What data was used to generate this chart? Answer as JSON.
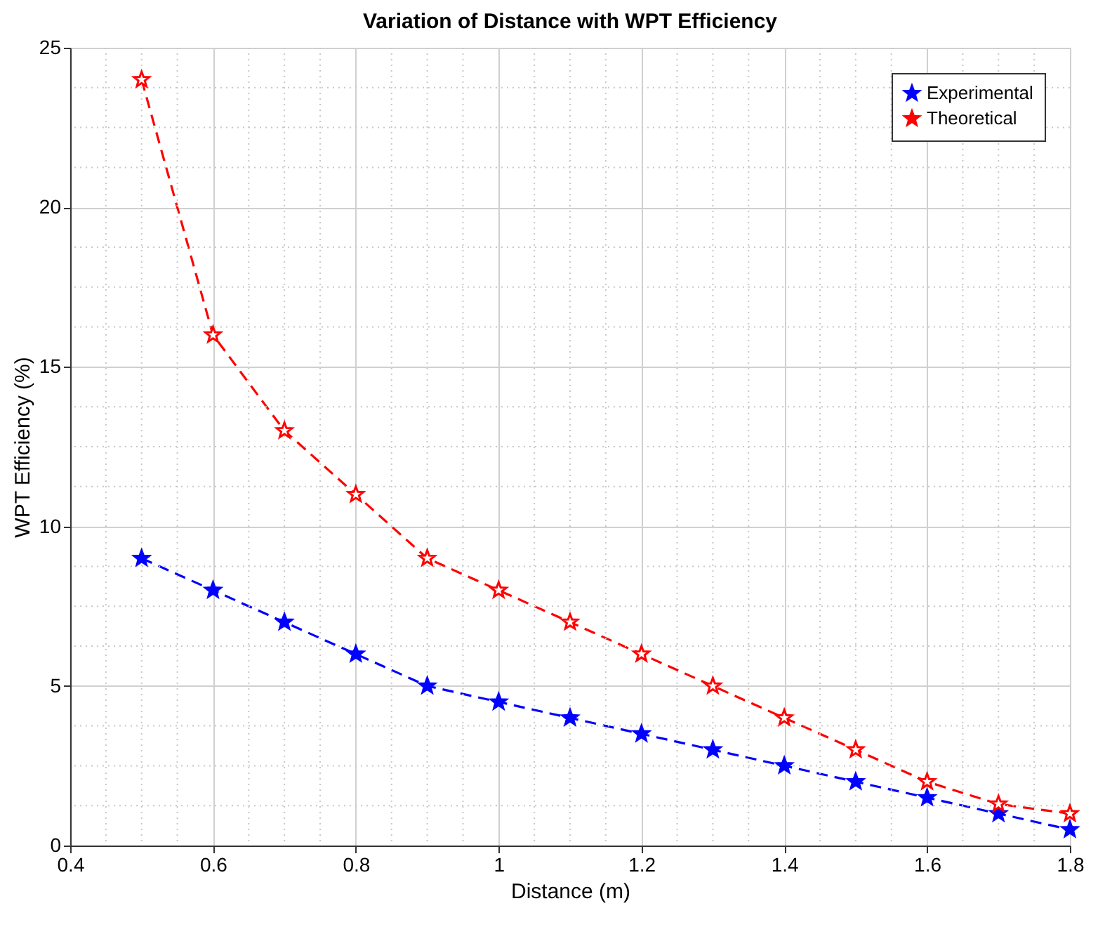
{
  "chart_data": {
    "type": "line",
    "title": "Variation of Distance with WPT Efficiency",
    "xlabel": "Distance (m)",
    "ylabel": "WPT Efficiency (%)",
    "x": [
      0.5,
      0.6,
      0.7,
      0.8,
      0.9,
      1.0,
      1.1,
      1.2,
      1.3,
      1.4,
      1.5,
      1.6,
      1.7,
      1.8
    ],
    "series": [
      {
        "name": "Experimental",
        "color": "#0000ff",
        "values": [
          9,
          8,
          7,
          6,
          5,
          4.5,
          4,
          3.5,
          3,
          2.5,
          2,
          1.5,
          1,
          0.5
        ]
      },
      {
        "name": "Theoretical",
        "color": "#ff0000",
        "values": [
          24,
          16,
          13,
          11,
          9,
          8,
          7,
          6,
          5,
          4,
          3,
          2,
          1.3,
          1
        ]
      }
    ],
    "xlim": [
      0.4,
      1.8
    ],
    "xticks": [
      0.4,
      0.6,
      0.8,
      1,
      1.2,
      1.4,
      1.6,
      1.8
    ],
    "ylim": [
      0,
      25
    ],
    "yticks": [
      0,
      5,
      10,
      15,
      20,
      25
    ],
    "grid": true,
    "legend": "top right",
    "marker": "star",
    "line_style": "dashed"
  }
}
